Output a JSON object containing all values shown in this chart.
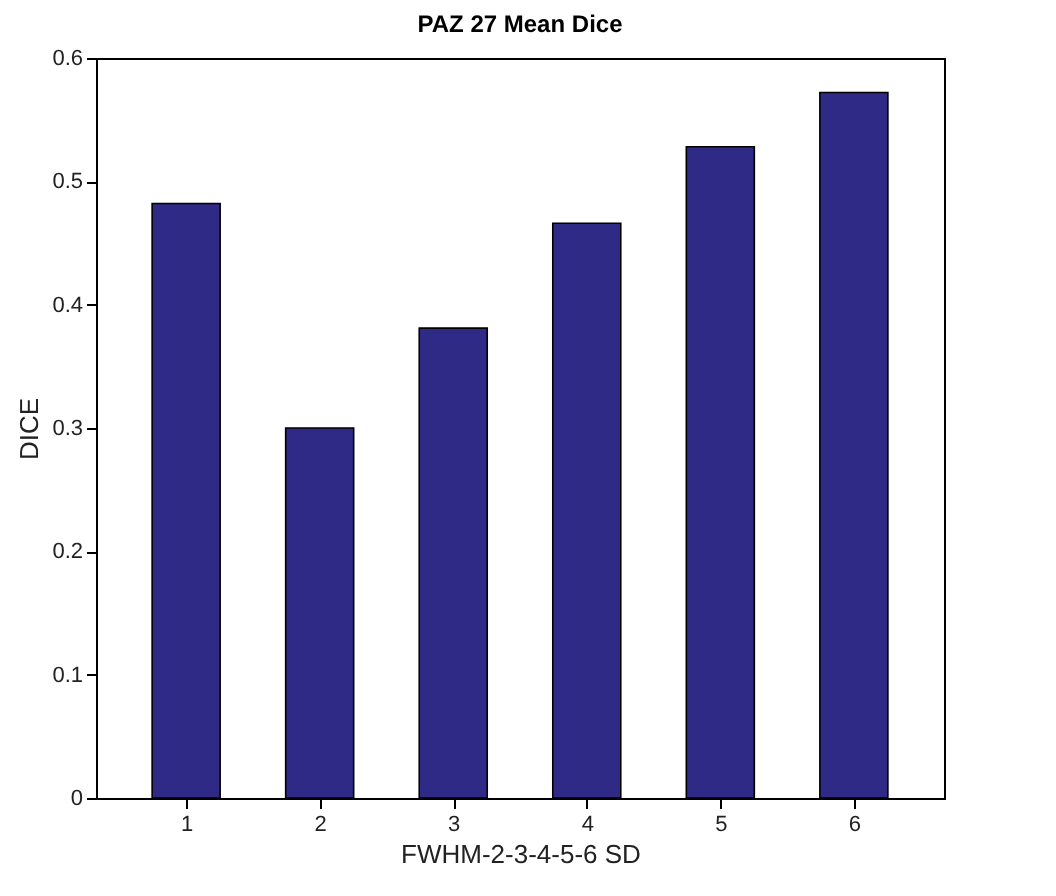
{
  "chart_data": {
    "type": "bar",
    "title": "PAZ 27 Mean Dice",
    "xlabel": "FWHM-2-3-4-5-6 SD",
    "ylabel": "DICE",
    "categories": [
      "1",
      "2",
      "3",
      "4",
      "5",
      "6"
    ],
    "values": [
      0.482,
      0.3,
      0.381,
      0.466,
      0.528,
      0.572
    ],
    "color": "#2e2a85",
    "ylim": [
      0,
      0.6
    ],
    "yticks": [
      0,
      0.1,
      0.2,
      0.3,
      0.4,
      0.5,
      0.6
    ],
    "grid": false
  }
}
